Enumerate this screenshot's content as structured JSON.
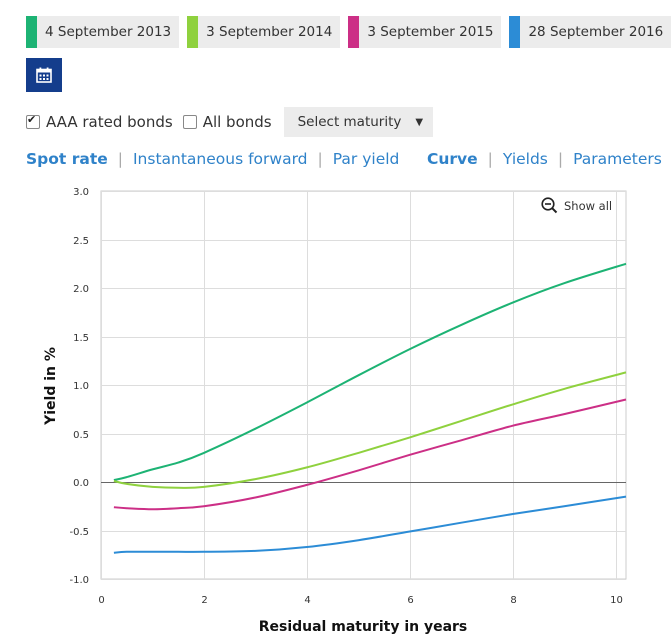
{
  "dates": [
    {
      "label": "4 September 2013",
      "color": "#1db374"
    },
    {
      "label": "3 September 2014",
      "color": "#8fd13e"
    },
    {
      "label": "3 September 2015",
      "color": "#cc2f86"
    },
    {
      "label": "28 September 2016",
      "color": "#2c8cd6"
    }
  ],
  "calendar": {
    "icon": "calendar-icon"
  },
  "filters": {
    "aaa_label": "AAA rated bonds",
    "aaa_checked": true,
    "all_label": "All bonds",
    "all_checked": false,
    "select_label": "Select maturity"
  },
  "nav_left": {
    "spot": "Spot rate",
    "forward": "Instantaneous forward",
    "par": "Par yield"
  },
  "nav_right": {
    "curve": "Curve",
    "yields": "Yields",
    "parameters": "Parameters"
  },
  "show_all": "Show all",
  "chart_data": {
    "type": "line",
    "title": "",
    "xlabel": "Residual maturity in years",
    "ylabel": "Yield in %",
    "xlim": [
      0,
      10.2
    ],
    "ylim": [
      -1.0,
      3.0
    ],
    "xticks": [
      0,
      2,
      4,
      6,
      8,
      10
    ],
    "yticks": [
      -1.0,
      -0.5,
      0.0,
      0.5,
      1.0,
      1.5,
      2.0,
      2.5,
      3.0
    ],
    "grid": true,
    "x": [
      0.25,
      0.5,
      1,
      1.5,
      2,
      3,
      4,
      5,
      6,
      7,
      8,
      9,
      10.2
    ],
    "series": [
      {
        "name": "4 September 2013",
        "color": "#1db374",
        "values": [
          0.02,
          0.05,
          0.13,
          0.2,
          0.3,
          0.55,
          0.82,
          1.1,
          1.37,
          1.62,
          1.85,
          2.05,
          2.25
        ]
      },
      {
        "name": "3 September 2014",
        "color": "#8fd13e",
        "values": [
          0.01,
          -0.02,
          -0.05,
          -0.06,
          -0.05,
          0.03,
          0.15,
          0.3,
          0.46,
          0.63,
          0.8,
          0.96,
          1.13
        ]
      },
      {
        "name": "3 September 2015",
        "color": "#cc2f86",
        "values": [
          -0.26,
          -0.27,
          -0.28,
          -0.27,
          -0.25,
          -0.16,
          -0.03,
          0.12,
          0.28,
          0.43,
          0.58,
          0.7,
          0.85
        ]
      },
      {
        "name": "28 September 2016",
        "color": "#2c8cd6",
        "values": [
          -0.73,
          -0.72,
          -0.72,
          -0.72,
          -0.72,
          -0.71,
          -0.67,
          -0.6,
          -0.51,
          -0.42,
          -0.33,
          -0.25,
          -0.15
        ]
      }
    ]
  }
}
